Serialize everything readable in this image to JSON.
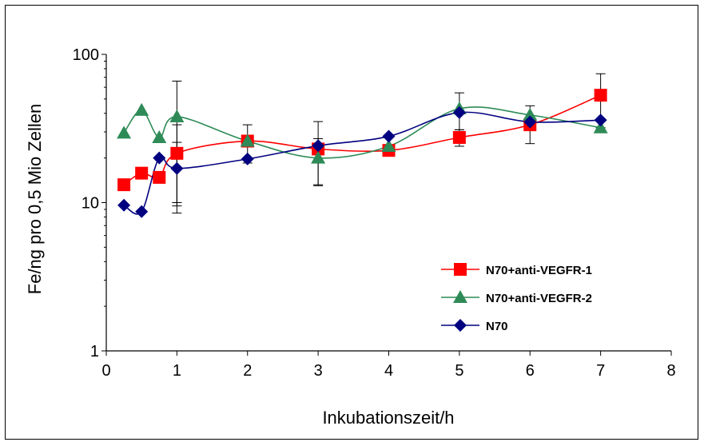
{
  "chart_data": {
    "type": "line",
    "title": "",
    "xlabel": "Inkubationszeit/h",
    "ylabel": "Fe/ng pro 0,5 Mio Zellen",
    "xlim": [
      0,
      8
    ],
    "ylim": [
      1,
      100
    ],
    "yscale": "log",
    "x_ticks": [
      "0",
      "1",
      "2",
      "3",
      "4",
      "5",
      "6",
      "7",
      "8"
    ],
    "y_ticks": [
      "1",
      "10",
      "100"
    ],
    "grid": false,
    "legend_position": "lower-right",
    "series": [
      {
        "name": "N70+anti-VEGFR-1",
        "color": "#ff0000",
        "marker": "square",
        "x": [
          0.25,
          0.5,
          0.75,
          1,
          2,
          3,
          4,
          5,
          6,
          7
        ],
        "y": [
          13.2,
          15.8,
          14.8,
          21.5,
          26,
          23,
          22.5,
          27.5,
          33.5,
          53
        ],
        "err": [
          0,
          0,
          0,
          12,
          0,
          0,
          0,
          3.5,
          0,
          21
        ]
      },
      {
        "name": "N70+anti-VEGFR-2",
        "color": "#2e8b57",
        "marker": "triangle",
        "x": [
          0.25,
          0.5,
          0.75,
          1,
          2,
          3,
          4,
          5,
          6,
          7
        ],
        "y": [
          29.5,
          42,
          27.5,
          38,
          26,
          20,
          24,
          43,
          39,
          32
        ],
        "err": [
          0,
          0,
          0,
          28,
          7.5,
          7,
          0,
          12,
          0,
          0
        ]
      },
      {
        "name": "N70",
        "color": "#000080",
        "marker": "diamond",
        "x": [
          0.25,
          0.5,
          0.75,
          1,
          2,
          3,
          4,
          5,
          6,
          7
        ],
        "y": [
          9.6,
          8.7,
          20,
          17,
          19.7,
          24.2,
          28,
          40.5,
          35,
          36
        ],
        "err": [
          0,
          0,
          0,
          8.5,
          0,
          11,
          0,
          0,
          10,
          0
        ]
      }
    ]
  }
}
